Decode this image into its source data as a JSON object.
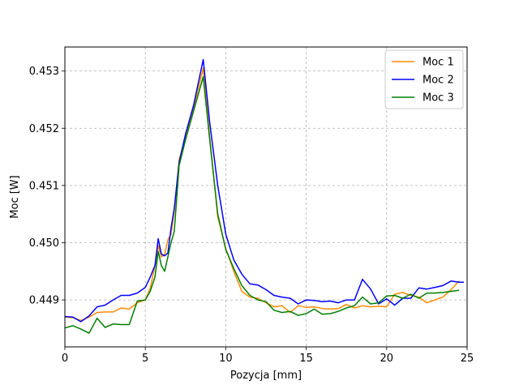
{
  "chart_data": {
    "type": "line",
    "xlabel": "Pozycja [mm]",
    "ylabel": "Moc [W]",
    "xlim": [
      0,
      25
    ],
    "ylim": [
      0.44818,
      0.45342
    ],
    "xticks": [
      0,
      5,
      10,
      15,
      20,
      25
    ],
    "xtick_labels": [
      "0",
      "5",
      "10",
      "15",
      "20",
      "25"
    ],
    "yticks": [
      0.449,
      0.45,
      0.451,
      0.452,
      0.453
    ],
    "ytick_labels": [
      "0.449",
      "0.450",
      "0.451",
      "0.452",
      "0.453"
    ],
    "grid": true,
    "legend_position": "top-right",
    "series": [
      {
        "name": "Moc 1",
        "color": "#ff8c00",
        "x": [
          0,
          0.5,
          1,
          1.5,
          2,
          2.5,
          3,
          3.5,
          4,
          4.5,
          5,
          5.3,
          5.6,
          5.8,
          6.0,
          6.2,
          6.4,
          6.6,
          6.8,
          7.1,
          7.5,
          8.0,
          8.6,
          9.0,
          9.5,
          10,
          10.5,
          11,
          11.5,
          12,
          12.5,
          13,
          13.5,
          14,
          14.5,
          15,
          15.5,
          16,
          16.5,
          17,
          17.5,
          18,
          18.5,
          19,
          19.5,
          20,
          20.5,
          21,
          21.5,
          22,
          22.5,
          23,
          23.5,
          24,
          24.5
        ],
        "y": [
          0.4487,
          0.44869,
          0.44864,
          0.4487,
          0.44878,
          0.44879,
          0.44879,
          0.44886,
          0.44884,
          0.44895,
          0.449,
          0.4492,
          0.4496,
          0.44995,
          0.44975,
          0.4498,
          0.45005,
          0.45015,
          0.45055,
          0.45145,
          0.45185,
          0.45235,
          0.45305,
          0.45185,
          0.45045,
          0.4499,
          0.4495,
          0.44915,
          0.44905,
          0.44903,
          0.44895,
          0.44888,
          0.4489,
          0.44878,
          0.4489,
          0.44887,
          0.44888,
          0.44885,
          0.44884,
          0.44885,
          0.44892,
          0.44886,
          0.4489,
          0.44888,
          0.44889,
          0.44888,
          0.4491,
          0.44913,
          0.44908,
          0.44905,
          0.44895,
          0.449,
          0.44905,
          0.44918,
          0.44933
        ]
      },
      {
        "name": "Moc 2",
        "color": "#0000ff",
        "x": [
          0,
          0.5,
          1,
          1.5,
          2,
          2.5,
          3,
          3.5,
          4,
          4.5,
          5,
          5.3,
          5.6,
          5.8,
          6.0,
          6.2,
          6.4,
          6.6,
          6.8,
          7.1,
          7.5,
          8.0,
          8.6,
          9.0,
          9.5,
          10,
          10.5,
          11,
          11.5,
          12,
          12.5,
          13,
          13.5,
          14,
          14.5,
          15,
          15.5,
          16,
          16.5,
          17,
          17.5,
          18,
          18.5,
          19,
          19.5,
          20,
          20.5,
          21,
          21.5,
          22,
          22.5,
          23,
          23.5,
          24,
          24.5,
          24.8
        ],
        "y": [
          0.44871,
          0.4487,
          0.44862,
          0.44872,
          0.44888,
          0.44891,
          0.449,
          0.44908,
          0.44908,
          0.44912,
          0.44922,
          0.4494,
          0.4496,
          0.45007,
          0.4498,
          0.44977,
          0.44982,
          0.45025,
          0.4506,
          0.4514,
          0.4519,
          0.4524,
          0.4532,
          0.4521,
          0.451,
          0.45015,
          0.4497,
          0.44945,
          0.44928,
          0.44926,
          0.44918,
          0.44908,
          0.44905,
          0.44903,
          0.44893,
          0.449,
          0.44899,
          0.44897,
          0.44898,
          0.44895,
          0.449,
          0.449,
          0.44936,
          0.44919,
          0.44893,
          0.44902,
          0.44891,
          0.44903,
          0.44903,
          0.44921,
          0.44919,
          0.44922,
          0.44925,
          0.44933,
          0.44931,
          0.44931
        ]
      },
      {
        "name": "Moc 3",
        "color": "#008000",
        "x": [
          0,
          0.5,
          1,
          1.5,
          2,
          2.5,
          3,
          3.5,
          4,
          4.5,
          5,
          5.3,
          5.6,
          5.8,
          6.0,
          6.2,
          6.4,
          6.6,
          6.8,
          7.1,
          7.5,
          8.0,
          8.6,
          9.0,
          9.5,
          10,
          10.5,
          11,
          11.5,
          12,
          12.5,
          13,
          13.5,
          14,
          14.5,
          15,
          15.5,
          16,
          16.5,
          17,
          17.5,
          18,
          18.5,
          19,
          19.5,
          20,
          20.5,
          21,
          21.5,
          22,
          22.5,
          23,
          23.5,
          24,
          24.5
        ],
        "y": [
          0.44851,
          0.44855,
          0.44849,
          0.44842,
          0.44868,
          0.44852,
          0.44858,
          0.44857,
          0.44857,
          0.44898,
          0.449,
          0.44915,
          0.4494,
          0.44985,
          0.4496,
          0.4495,
          0.44975,
          0.45,
          0.4502,
          0.45135,
          0.4518,
          0.4523,
          0.4529,
          0.4518,
          0.4505,
          0.44988,
          0.44955,
          0.44925,
          0.44908,
          0.449,
          0.44897,
          0.44882,
          0.44878,
          0.4488,
          0.44873,
          0.44876,
          0.44884,
          0.44875,
          0.44876,
          0.4488,
          0.44886,
          0.4489,
          0.44905,
          0.44893,
          0.44895,
          0.44907,
          0.44908,
          0.44903,
          0.4491,
          0.44903,
          0.44912,
          0.44912,
          0.44913,
          0.44915,
          0.44917
        ]
      }
    ]
  }
}
